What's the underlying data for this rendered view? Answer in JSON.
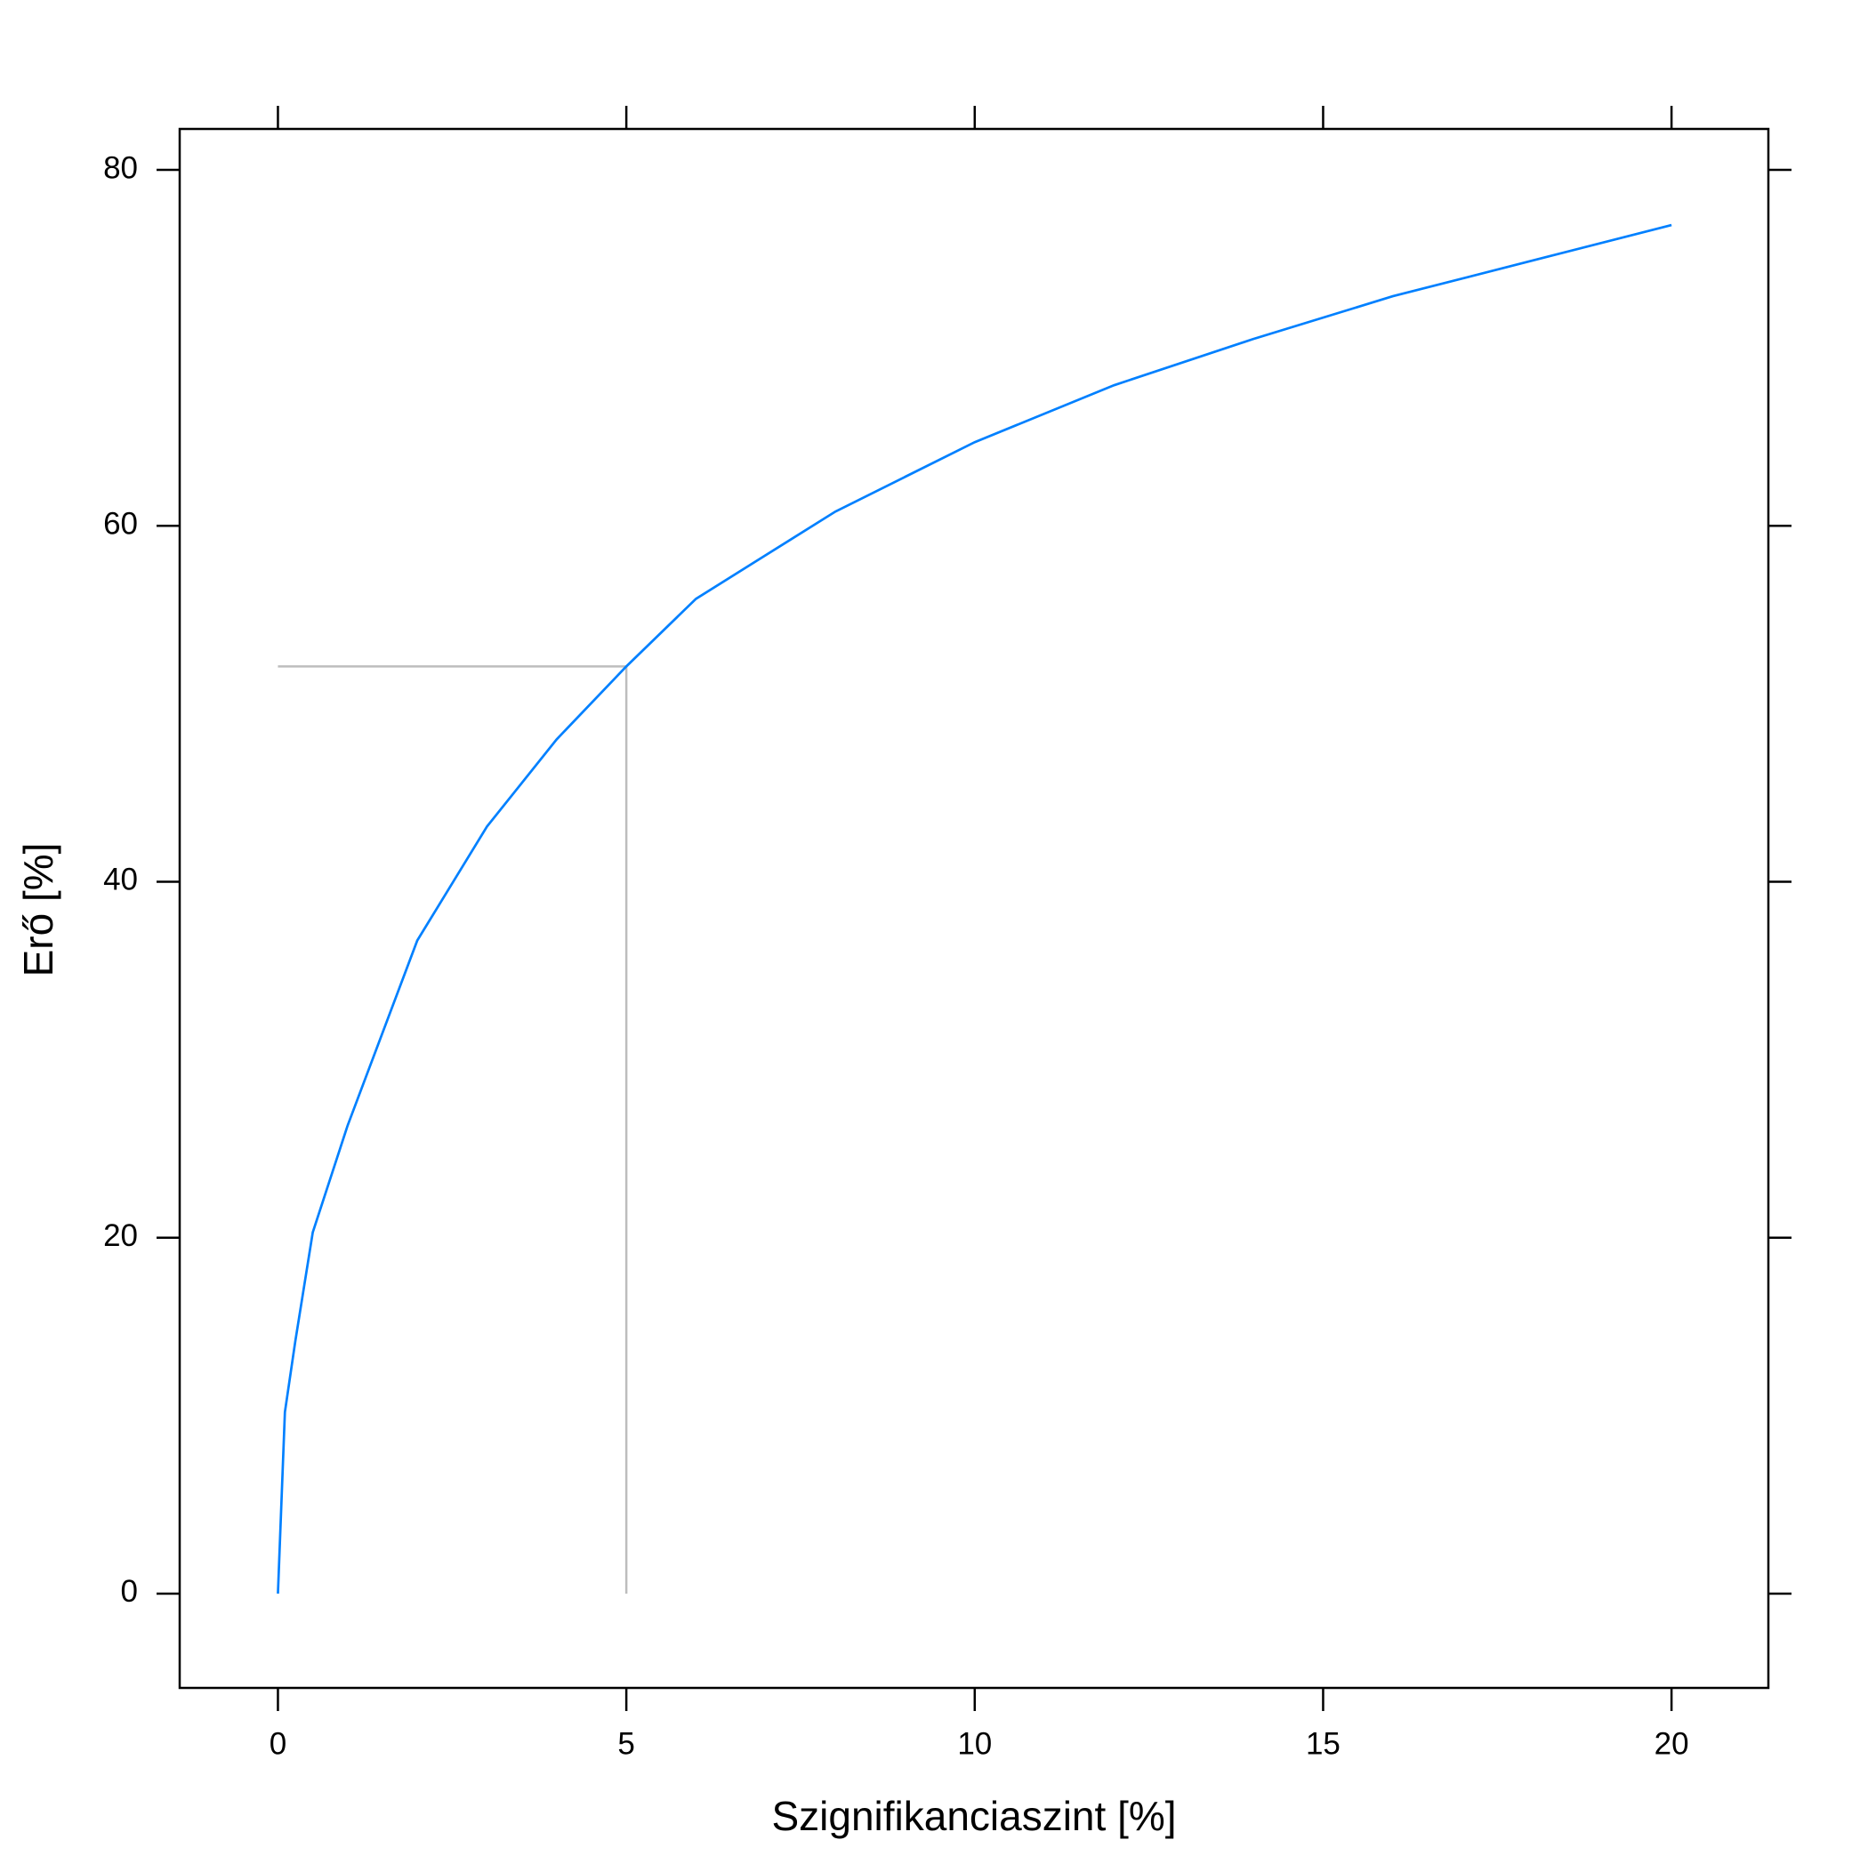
{
  "chart_data": {
    "type": "line",
    "x_label": "Szignifikanciaszint [%]",
    "y_label": "Erő [%]",
    "x": [
      0,
      0.1,
      0.25,
      0.5,
      1,
      2,
      3,
      4,
      5,
      6,
      8,
      10,
      12,
      14,
      16,
      18,
      20
    ],
    "series": [
      {
        "color": "#0080ff",
        "values": [
          0,
          10.2,
          14.2,
          20.3,
          26.3,
          36.7,
          43.1,
          48,
          52.1,
          55.9,
          60.8,
          64.7,
          67.9,
          70.5,
          72.9,
          74.9,
          76.9
        ]
      }
    ],
    "reference": {
      "x": 5,
      "y": 52.1,
      "color": "#bdbdbd"
    },
    "xlim": [
      -1.41,
      21.39
    ],
    "ylim": [
      -5.3,
      82.3
    ],
    "xticks": [
      0,
      5,
      10,
      15,
      20
    ],
    "yticks": [
      0,
      20,
      40,
      60,
      80
    ]
  }
}
